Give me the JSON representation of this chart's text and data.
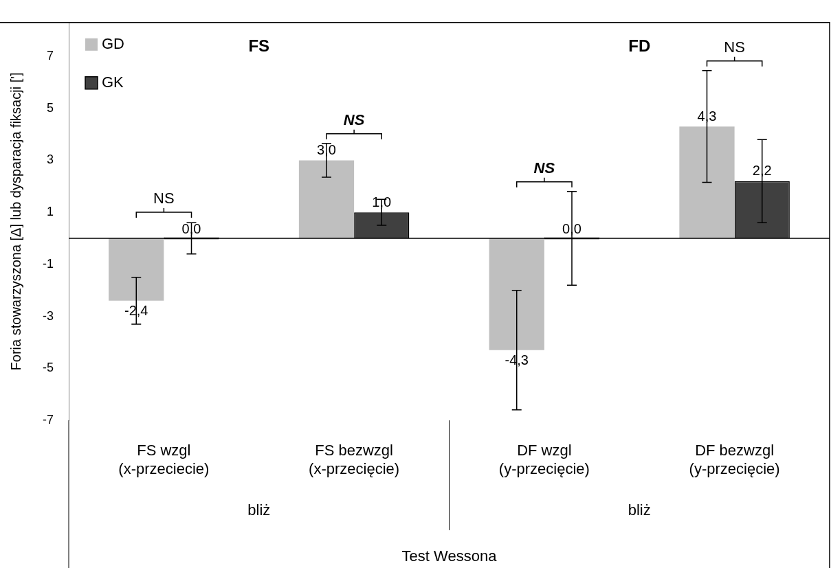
{
  "chart_data": {
    "type": "bar",
    "ylabel": "Foria stowarzyszona [Δ] lub dysparacja fiksacji [']",
    "xlabel": "Test Wessona",
    "categories": [
      "FS wzgl (x-przeciecie)",
      "FS bezwzgl (x-przecięcie)",
      "DF wzgl (y-przecięcie)",
      "DF bezwzgl (y-przecięcie)"
    ],
    "series": [
      {
        "name": "GD",
        "color": "#bfbfbf",
        "values": [
          -2.4,
          3.0,
          -4.3,
          4.3
        ],
        "errors": [
          0.9,
          0.65,
          2.3,
          2.15
        ],
        "value_labels": [
          "-2,4",
          "3,0",
          "-4,3",
          "4,3"
        ]
      },
      {
        "name": "GK",
        "color": "#404040",
        "values": [
          0.0,
          1.0,
          0.0,
          2.2
        ],
        "errors": [
          0.6,
          0.5,
          1.8,
          1.6
        ],
        "value_labels": [
          "0,0",
          "1,0",
          "0,0",
          "2,2"
        ]
      }
    ],
    "ylim": [
      -7,
      8.3
    ],
    "yticks": [
      -7,
      -5,
      -3,
      -1,
      1,
      3,
      5,
      7
    ],
    "grid": false,
    "legend": "top left",
    "annotations": [
      "FS",
      "FD",
      "bliż",
      "bliż",
      "NS",
      "NS",
      "NS",
      "NS"
    ]
  }
}
